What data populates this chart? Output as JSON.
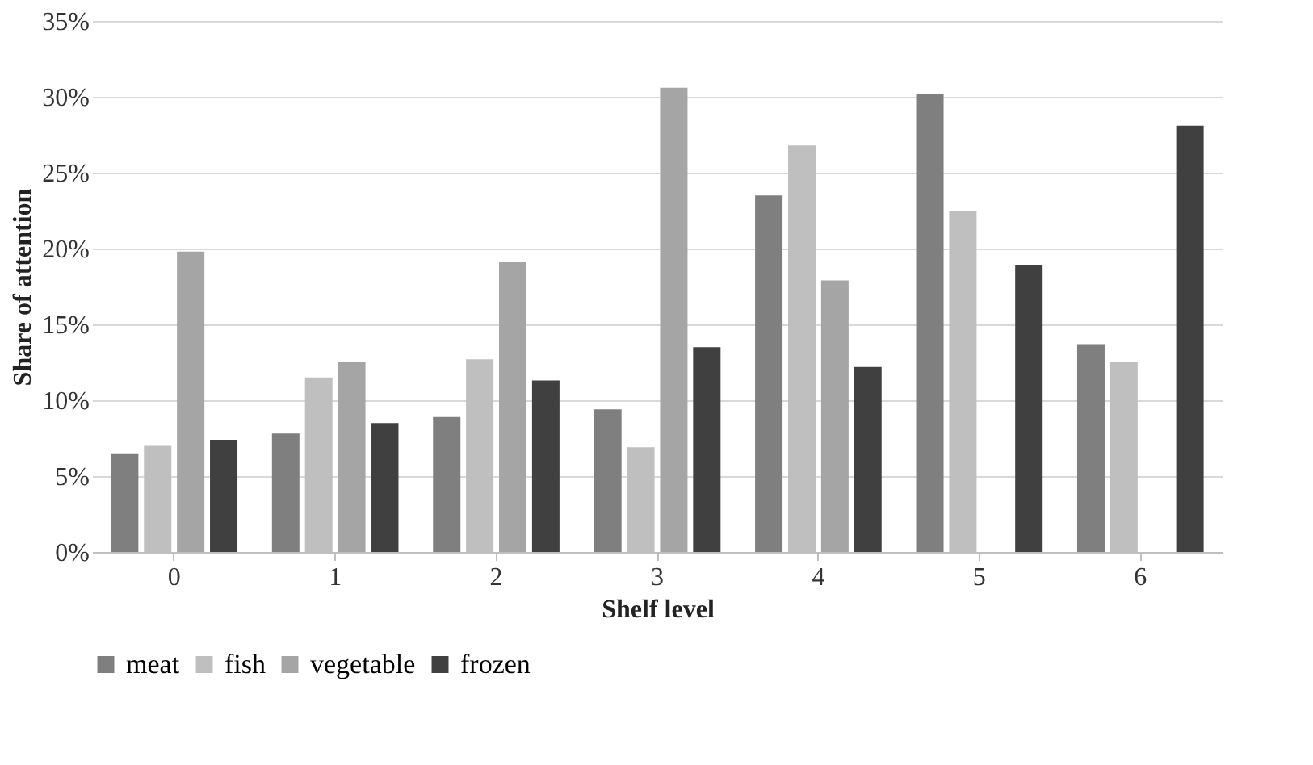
{
  "chart_data": {
    "type": "bar",
    "xlabel": "Shelf level",
    "ylabel": "Share of attention",
    "categories": [
      "0",
      "1",
      "2",
      "3",
      "4",
      "5",
      "6"
    ],
    "series": [
      {
        "name": "meat",
        "color": "#7f7f7f",
        "values": [
          6.5,
          7.8,
          8.9,
          9.4,
          23.5,
          30.2,
          13.7
        ]
      },
      {
        "name": "fish",
        "color": "#bfbfbf",
        "values": [
          7.0,
          11.5,
          12.7,
          6.9,
          26.8,
          22.5,
          12.5
        ]
      },
      {
        "name": "vegetable",
        "color": "#a5a5a5",
        "values": [
          19.8,
          12.5,
          19.1,
          30.6,
          17.9,
          null,
          null
        ]
      },
      {
        "name": "frozen",
        "color": "#404040",
        "values": [
          7.4,
          8.5,
          11.3,
          13.5,
          12.2,
          18.9,
          28.1
        ]
      }
    ],
    "ylim": [
      0,
      35
    ],
    "yticks": [
      {
        "value": 0,
        "label": "0%"
      },
      {
        "value": 5,
        "label": "5%"
      },
      {
        "value": 10,
        "label": "10%"
      },
      {
        "value": 15,
        "label": "15%"
      },
      {
        "value": 20,
        "label": "20%"
      },
      {
        "value": 25,
        "label": "25%"
      },
      {
        "value": 30,
        "label": "30%"
      },
      {
        "value": 35,
        "label": "35%"
      }
    ],
    "grid": "y",
    "legend": "bottom"
  }
}
